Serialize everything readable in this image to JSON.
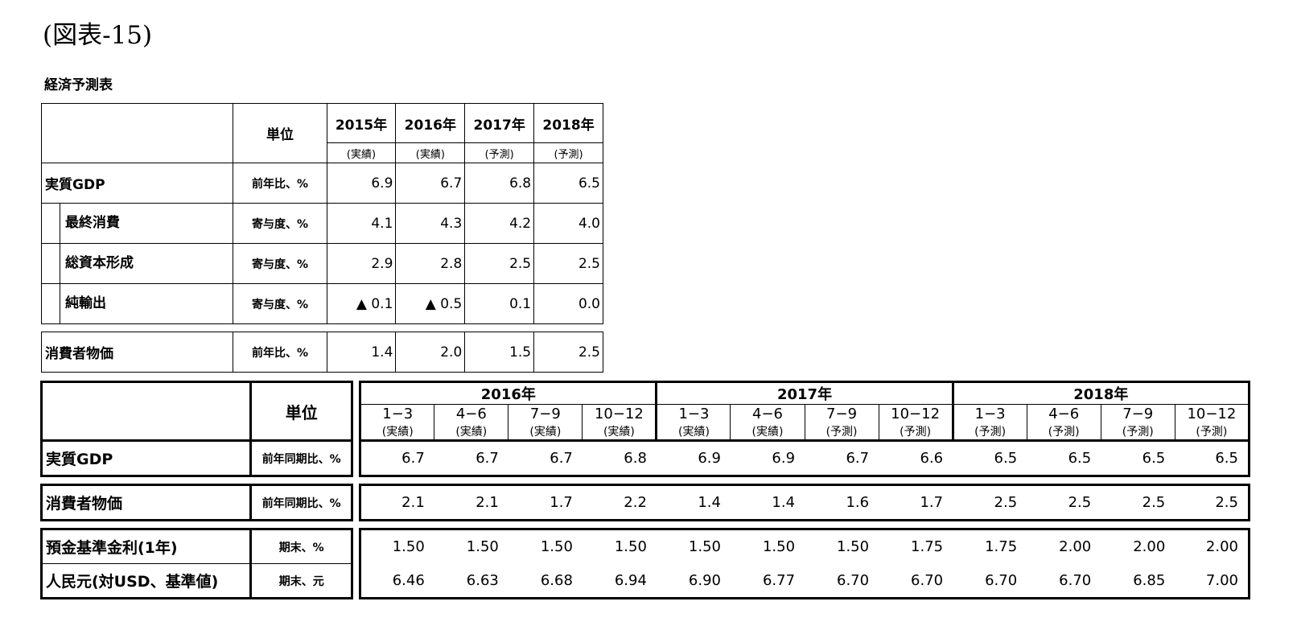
{
  "figure_title": "(図表-15)",
  "table_title": "経済予測表",
  "annual": {
    "unit_header": "単位",
    "years": [
      {
        "year": "2015年",
        "note": "(実績)"
      },
      {
        "year": "2016年",
        "note": "(実績)"
      },
      {
        "year": "2017年",
        "note": "(予測)"
      },
      {
        "year": "2018年",
        "note": "(予測)"
      }
    ],
    "rows": [
      {
        "label": "実質GDP",
        "unit": "前年比、%",
        "values": [
          "6.9",
          "6.7",
          "6.8",
          "6.5"
        ]
      },
      {
        "label": "最終消費",
        "unit": "寄与度、%",
        "values": [
          "4.1",
          "4.3",
          "4.2",
          "4.0"
        ]
      },
      {
        "label": "総資本形成",
        "unit": "寄与度、%",
        "values": [
          "2.9",
          "2.8",
          "2.5",
          "2.5"
        ]
      },
      {
        "label": "純輸出",
        "unit": "寄与度、%",
        "values": [
          "▲ 0.1",
          "▲ 0.5",
          "0.1",
          "0.0"
        ]
      },
      {
        "label": "消費者物価",
        "unit": "前年比、%",
        "values": [
          "1.4",
          "2.0",
          "1.5",
          "2.5"
        ]
      }
    ]
  },
  "quarterly": {
    "unit_header": "単位",
    "years": [
      "2016年",
      "2017年",
      "2018年"
    ],
    "quarters": [
      "1−3",
      "4−6",
      "7−9",
      "10−12",
      "1−3",
      "4−6",
      "7−9",
      "10−12",
      "1−3",
      "4−6",
      "7−9",
      "10−12"
    ],
    "notes": [
      "(実績)",
      "(実績)",
      "(実績)",
      "(実績)",
      "(実績)",
      "(実績)",
      "(予測)",
      "(予測)",
      "(予測)",
      "(予測)",
      "(予測)",
      "(予測)"
    ],
    "rows": [
      {
        "label": "実質GDP",
        "unit": "前年同期比、%",
        "values": [
          "6.7",
          "6.7",
          "6.7",
          "6.8",
          "6.9",
          "6.9",
          "6.7",
          "6.6",
          "6.5",
          "6.5",
          "6.5",
          "6.5"
        ]
      },
      {
        "label": "消費者物価",
        "unit": "前年同期比、%",
        "values": [
          "2.1",
          "2.1",
          "1.7",
          "2.2",
          "1.4",
          "1.4",
          "1.6",
          "1.7",
          "2.5",
          "2.5",
          "2.5",
          "2.5"
        ]
      },
      {
        "label": "預金基準金利(1年)",
        "unit": "期末、%",
        "values": [
          "1.50",
          "1.50",
          "1.50",
          "1.50",
          "1.50",
          "1.50",
          "1.50",
          "1.75",
          "1.75",
          "2.00",
          "2.00",
          "2.00"
        ]
      },
      {
        "label": "人民元(対USD、基準値)",
        "unit": "期末、元",
        "values": [
          "6.46",
          "6.63",
          "6.68",
          "6.94",
          "6.90",
          "6.77",
          "6.70",
          "6.70",
          "6.70",
          "6.70",
          "6.85",
          "7.00"
        ]
      }
    ]
  }
}
